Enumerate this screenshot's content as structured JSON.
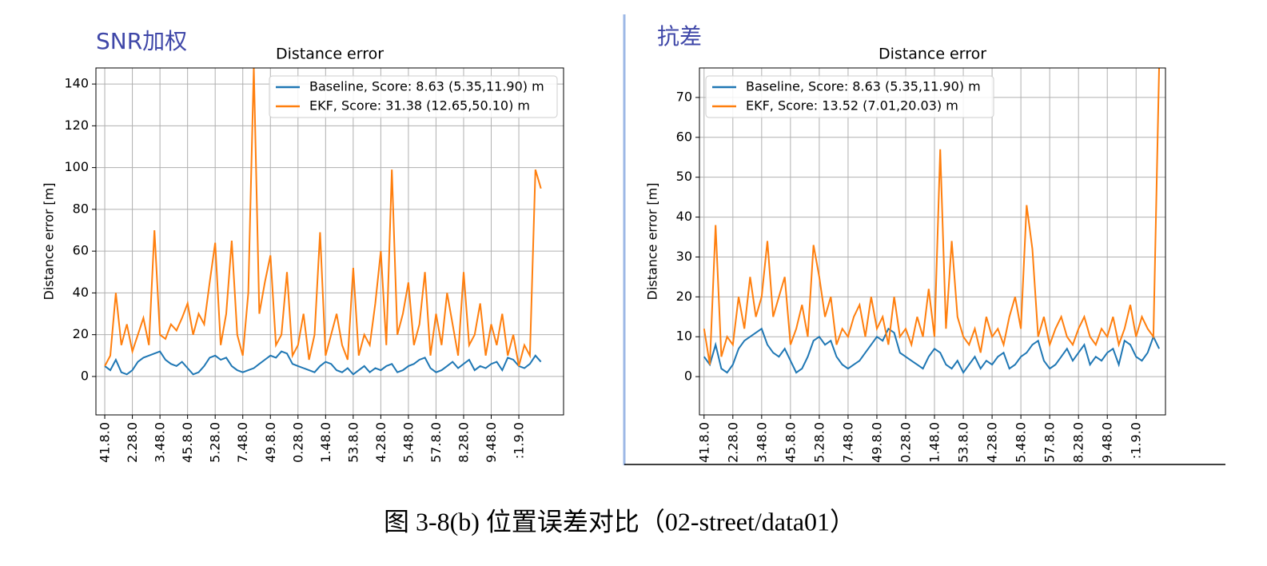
{
  "caption": "图 3-8(b)  位置误差对比（02-street/data01）",
  "chart_data": [
    {
      "type": "line",
      "panel_label": "SNR加权",
      "title": "Distance error",
      "y_label": "Distance error [m]",
      "legend": "upper right",
      "grid": true,
      "x": [
        0,
        1,
        2,
        3,
        4,
        5,
        6,
        7,
        8,
        9,
        10,
        11,
        12,
        13,
        14,
        15,
        16,
        17,
        18,
        19,
        20,
        21,
        22,
        23,
        24,
        25,
        26,
        27,
        28,
        29,
        30,
        31,
        32,
        33,
        34,
        35,
        36,
        37,
        38,
        39,
        40,
        41,
        42,
        43,
        44,
        45,
        46,
        47,
        48,
        49,
        50,
        51,
        52,
        53,
        54,
        55,
        56,
        57,
        58,
        59,
        60,
        61,
        62,
        63,
        64,
        65,
        66,
        67,
        68,
        69,
        70,
        71,
        72,
        73,
        74,
        75,
        76,
        77,
        78,
        79
      ],
      "xlim": [
        -1.6,
        83.1
      ],
      "xticks": [
        {
          "value": 0,
          "label": "41.8.0"
        },
        {
          "value": 5,
          "label": "2.28.0"
        },
        {
          "value": 10,
          "label": "3.48.0"
        },
        {
          "value": 15,
          "label": "45.8.0"
        },
        {
          "value": 20,
          "label": "5.28.0"
        },
        {
          "value": 25,
          "label": "7.48.0"
        },
        {
          "value": 30,
          "label": "49.8.0"
        },
        {
          "value": 35,
          "label": "0.28.0"
        },
        {
          "value": 40,
          "label": "1.48.0"
        },
        {
          "value": 45,
          "label": "53.8.0"
        },
        {
          "value": 50,
          "label": "4.28.0"
        },
        {
          "value": 55,
          "label": "5.48.0"
        },
        {
          "value": 60,
          "label": "57.8.0"
        },
        {
          "value": 65,
          "label": "8.28.0"
        },
        {
          "value": 70,
          "label": "9.48.0"
        },
        {
          "value": 75,
          "label": ":1.9.0"
        }
      ],
      "ylim": [
        -18.4,
        147.7
      ],
      "yticks": [
        0,
        20,
        40,
        60,
        80,
        100,
        120,
        140
      ],
      "series": [
        {
          "name": "Baseline, Score: 8.63 (5.35,11.90) m",
          "color": "#1f77b4",
          "values": [
            5,
            3,
            8,
            2,
            1,
            3,
            7,
            9,
            10,
            11,
            12,
            8,
            6,
            5,
            7,
            4,
            1,
            2,
            5,
            9,
            10,
            8,
            9,
            5,
            3,
            2,
            3,
            4,
            6,
            8,
            10,
            9,
            12,
            11,
            6,
            5,
            4,
            3,
            2,
            5,
            7,
            6,
            3,
            2,
            4,
            1,
            3,
            5,
            2,
            4,
            3,
            5,
            6,
            2,
            3,
            5,
            6,
            8,
            9,
            4,
            2,
            3,
            5,
            7,
            4,
            6,
            8,
            3,
            5,
            4,
            6,
            7,
            3,
            9,
            8,
            5,
            4,
            6,
            10,
            7
          ]
        },
        {
          "name": "EKF, Score: 31.38 (12.65,50.10) m",
          "color": "#ff7f0e",
          "values": [
            5,
            10,
            40,
            15,
            25,
            12,
            20,
            28,
            15,
            70,
            20,
            18,
            25,
            22,
            28,
            35,
            20,
            30,
            25,
            45,
            64,
            15,
            30,
            65,
            20,
            10,
            40,
            148,
            30,
            45,
            58,
            15,
            20,
            50,
            10,
            15,
            30,
            8,
            20,
            69,
            10,
            20,
            30,
            15,
            8,
            52,
            10,
            20,
            15,
            35,
            60,
            15,
            99,
            20,
            30,
            45,
            15,
            25,
            50,
            10,
            30,
            15,
            40,
            25,
            10,
            50,
            15,
            20,
            35,
            10,
            25,
            15,
            30,
            10,
            20,
            5,
            15,
            10,
            99,
            90
          ]
        }
      ]
    },
    {
      "type": "line",
      "panel_label": "抗差",
      "title": "Distance error",
      "y_label": "Distance error [m]",
      "legend": "upper left",
      "grid": true,
      "x": [
        0,
        1,
        2,
        3,
        4,
        5,
        6,
        7,
        8,
        9,
        10,
        11,
        12,
        13,
        14,
        15,
        16,
        17,
        18,
        19,
        20,
        21,
        22,
        23,
        24,
        25,
        26,
        27,
        28,
        29,
        30,
        31,
        32,
        33,
        34,
        35,
        36,
        37,
        38,
        39,
        40,
        41,
        42,
        43,
        44,
        45,
        46,
        47,
        48,
        49,
        50,
        51,
        52,
        53,
        54,
        55,
        56,
        57,
        58,
        59,
        60,
        61,
        62,
        63,
        64,
        65,
        66,
        67,
        68,
        69,
        70,
        71,
        72,
        73,
        74,
        75,
        76,
        77,
        78,
        79
      ],
      "xlim": [
        -0.8,
        80.1
      ],
      "xticks": [
        {
          "value": 0,
          "label": "41.8.0"
        },
        {
          "value": 5,
          "label": "2.28.0"
        },
        {
          "value": 10,
          "label": "3.48.0"
        },
        {
          "value": 15,
          "label": "45.8.0"
        },
        {
          "value": 20,
          "label": "5.28.0"
        },
        {
          "value": 25,
          "label": "7.48.0"
        },
        {
          "value": 30,
          "label": "49.8.0"
        },
        {
          "value": 35,
          "label": "0.28.0"
        },
        {
          "value": 40,
          "label": "1.48.0"
        },
        {
          "value": 45,
          "label": "53.8.0"
        },
        {
          "value": 50,
          "label": "4.28.0"
        },
        {
          "value": 55,
          "label": "5.48.0"
        },
        {
          "value": 60,
          "label": "57.8.0"
        },
        {
          "value": 65,
          "label": "8.28.0"
        },
        {
          "value": 70,
          "label": "9.48.0"
        },
        {
          "value": 75,
          "label": ":1.9.0"
        }
      ],
      "ylim": [
        -9.6,
        77.4
      ],
      "yticks": [
        0,
        10,
        20,
        30,
        40,
        50,
        60,
        70
      ],
      "series": [
        {
          "name": "Baseline, Score: 8.63 (5.35,11.90) m",
          "color": "#1f77b4",
          "values": [
            5,
            3,
            8,
            2,
            1,
            3,
            7,
            9,
            10,
            11,
            12,
            8,
            6,
            5,
            7,
            4,
            1,
            2,
            5,
            9,
            10,
            8,
            9,
            5,
            3,
            2,
            3,
            4,
            6,
            8,
            10,
            9,
            12,
            11,
            6,
            5,
            4,
            3,
            2,
            5,
            7,
            6,
            3,
            2,
            4,
            1,
            3,
            5,
            2,
            4,
            3,
            5,
            6,
            2,
            3,
            5,
            6,
            8,
            9,
            4,
            2,
            3,
            5,
            7,
            4,
            6,
            8,
            3,
            5,
            4,
            6,
            7,
            3,
            9,
            8,
            5,
            4,
            6,
            10,
            7
          ]
        },
        {
          "name": "EKF, Score: 13.52 (7.01,20.03) m",
          "color": "#ff7f0e",
          "values": [
            12,
            3,
            38,
            5,
            10,
            8,
            20,
            12,
            25,
            15,
            20,
            34,
            15,
            20,
            25,
            8,
            12,
            18,
            10,
            33,
            25,
            15,
            20,
            8,
            12,
            10,
            15,
            18,
            10,
            20,
            12,
            15,
            8,
            20,
            10,
            12,
            8,
            15,
            10,
            22,
            10,
            57,
            12,
            34,
            15,
            10,
            8,
            12,
            6,
            15,
            10,
            12,
            8,
            15,
            20,
            12,
            43,
            32,
            10,
            15,
            8,
            12,
            15,
            10,
            8,
            12,
            15,
            10,
            8,
            12,
            10,
            15,
            8,
            12,
            18,
            10,
            15,
            12,
            10,
            78
          ]
        }
      ]
    }
  ]
}
